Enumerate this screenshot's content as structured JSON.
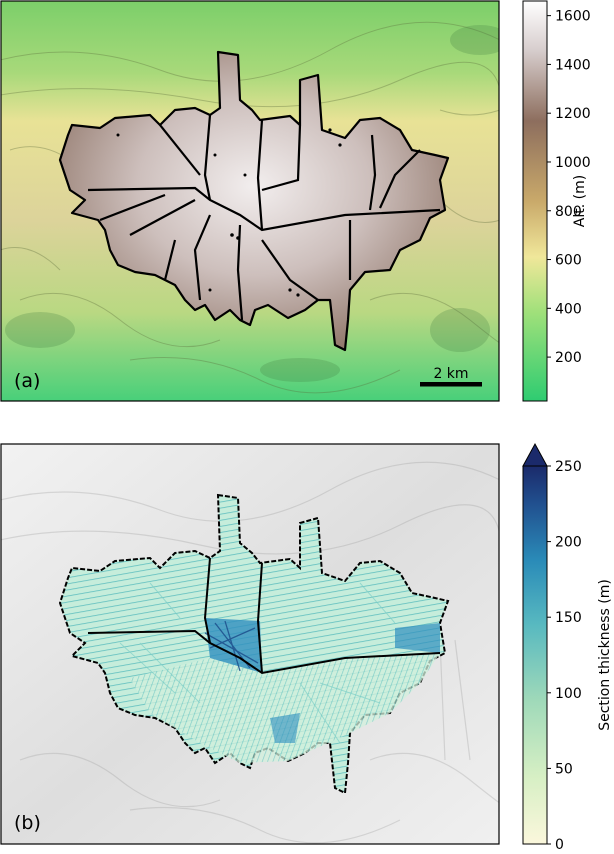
{
  "panel_a": {
    "label": "(a)",
    "scale_bar_label": "2 km",
    "colorbar": {
      "label": "Alt. (m)",
      "ticks": [
        "200",
        "400",
        "600",
        "800",
        "1000",
        "1200",
        "1400",
        "1600"
      ],
      "range": [
        20,
        1660
      ],
      "colors": [
        "#2ecc71",
        "#9fe07a",
        "#f0e79a",
        "#c9a96a",
        "#8d6e5e",
        "#d8cfcf",
        "#ffffff"
      ]
    }
  },
  "panel_b": {
    "label": "(b)",
    "colorbar": {
      "label": "Section thickness (m)",
      "ticks": [
        "0",
        "50",
        "100",
        "150",
        "200",
        "250"
      ],
      "range": [
        0,
        250
      ],
      "extend": "max",
      "colors": [
        "#fbf7dc",
        "#d6efc4",
        "#9fd9b9",
        "#58b9c0",
        "#2a8bb8",
        "#21508f",
        "#1b2a6b"
      ]
    }
  }
}
